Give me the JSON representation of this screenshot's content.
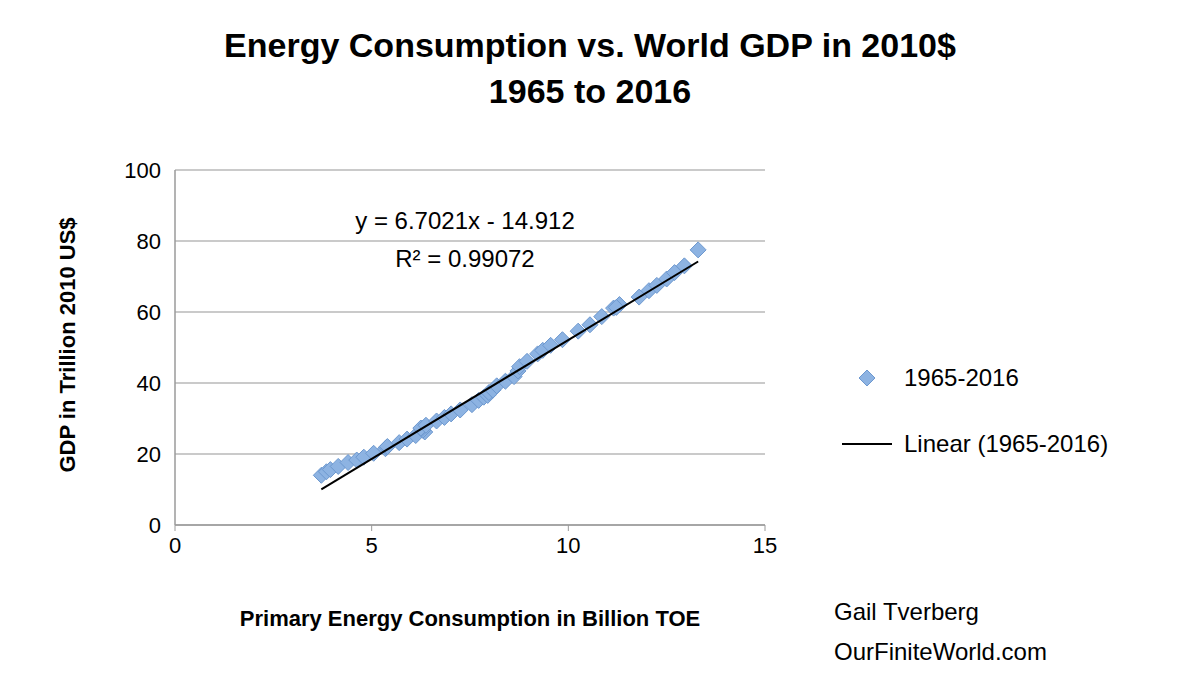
{
  "chart_data": {
    "type": "scatter",
    "title": "Energy Consumption vs. World GDP in 2010$",
    "subtitle": "1965 to 2016",
    "x_label": "Primary Energy Consumption in Billion TOE",
    "y_label": "GDP in Trillion 2010 US$",
    "annotations": [
      "y = 6.7021x - 14.912",
      "R² = 0.99072"
    ],
    "credit": [
      "Gail Tverberg",
      "OurFiniteWorld.com"
    ],
    "series": [
      {
        "name": "1965-2016",
        "type": "scatter",
        "marker": "diamond",
        "color": "#8db3e2",
        "x": [
          3.72,
          3.85,
          3.95,
          4.15,
          4.4,
          4.62,
          4.8,
          5.05,
          5.35,
          5.38,
          5.4,
          5.7,
          5.9,
          6.12,
          6.35,
          6.3,
          6.28,
          6.25,
          6.38,
          6.65,
          6.85,
          7.02,
          7.25,
          7.55,
          7.72,
          7.85,
          7.95,
          7.98,
          8.08,
          8.18,
          8.4,
          8.62,
          8.72,
          8.76,
          8.95,
          9.22,
          9.35,
          9.55,
          9.85,
          10.25,
          10.55,
          10.85,
          11.15,
          11.3,
          11.22,
          11.8,
          12.05,
          12.25,
          12.5,
          12.7,
          12.95,
          13.3
        ],
        "values": [
          14.0,
          15.0,
          15.6,
          16.5,
          17.6,
          18.3,
          19.1,
          20.2,
          21.5,
          21.9,
          22.1,
          23.2,
          24.2,
          25.2,
          26.2,
          26.7,
          27.2,
          27.3,
          28.1,
          29.3,
          30.3,
          31.3,
          32.4,
          33.9,
          35.1,
          36.0,
          36.5,
          37.3,
          38.0,
          39.2,
          40.5,
          41.8,
          43.4,
          44.6,
          46.1,
          48.2,
          49.2,
          50.6,
          52.2,
          54.6,
          56.4,
          58.7,
          61.1,
          62.1,
          61.3,
          64.2,
          66.0,
          67.5,
          69.3,
          71.1,
          73.0,
          77.5
        ]
      },
      {
        "name": "Linear (1965-2016)",
        "type": "line",
        "line_style": "solid",
        "color": "#000000",
        "x": [
          3.72,
          13.3
        ],
        "values": [
          10.02,
          74.23
        ]
      }
    ],
    "xlim": [
      0,
      15
    ],
    "xticks": [
      0,
      5,
      10,
      15
    ],
    "ylim": [
      0,
      100
    ],
    "yticks": [
      0,
      20,
      40,
      60,
      80,
      100
    ],
    "grid": "y",
    "legend": "right"
  }
}
